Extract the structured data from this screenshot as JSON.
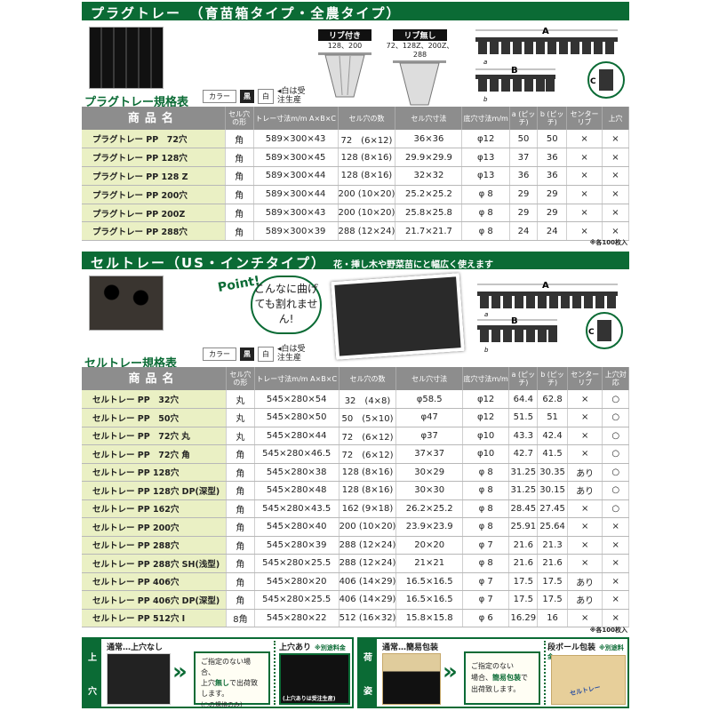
{
  "plug": {
    "title": "プラグトレー　（育苗箱タイプ・全農タイプ）",
    "spec_title": "プラグトレー規格表",
    "color_label": "カラー",
    "black": "黒",
    "white": "白",
    "white_note": "◂白は受注生産",
    "rib_with": "リブ付き",
    "rib_with_models": "128、200",
    "rib_without": "リブ無し",
    "rib_without_models": "72、128Z、200Z、288",
    "dim_a": "A",
    "dim_b": "B",
    "dim_c": "C",
    "pitch_a": "a",
    "pitch_b": "b",
    "headers": [
      "商品名",
      "セル穴の形",
      "トレー寸法m/m A×B×C",
      "セル穴の数",
      "セル穴寸法",
      "底穴寸法m/m",
      "a (ピッチ)",
      "b (ピッチ)",
      "センターリブ",
      "上穴"
    ],
    "rows": [
      [
        "プラグトレー PP　72穴",
        "角",
        "589×300×43",
        "72　(6×12)",
        "36×36",
        "φ12",
        "50",
        "50",
        "×",
        "×"
      ],
      [
        "プラグトレー PP 128穴",
        "角",
        "589×300×45",
        "128 (8×16)",
        "29.9×29.9",
        "φ13",
        "37",
        "36",
        "×",
        "×"
      ],
      [
        "プラグトレー PP 128 Z",
        "角",
        "589×300×44",
        "128 (8×16)",
        "32×32",
        "φ13",
        "36",
        "36",
        "×",
        "×"
      ],
      [
        "プラグトレー PP 200穴",
        "角",
        "589×300×44",
        "200 (10×20)",
        "25.2×25.2",
        "φ 8",
        "29",
        "29",
        "×",
        "×"
      ],
      [
        "プラグトレー PP 200Z",
        "角",
        "589×300×43",
        "200 (10×20)",
        "25.8×25.8",
        "φ 8",
        "29",
        "29",
        "×",
        "×"
      ],
      [
        "プラグトレー PP 288穴",
        "角",
        "589×300×39",
        "288 (12×24)",
        "21.7×21.7",
        "φ 8",
        "24",
        "24",
        "×",
        "×"
      ]
    ],
    "footnote": "※各100枚入"
  },
  "cell": {
    "title": "セルトレー（US・インチタイプ）",
    "subtitle": "花・挿し木や野菜苗にと幅広く使えます",
    "point": "Point!",
    "bubble": "こんなに曲げても割れません!",
    "spec_title": "セルトレー規格表",
    "color_label": "カラー",
    "black": "黒",
    "white": "白",
    "white_note": "◂白は受注生産",
    "dim_a": "A",
    "dim_b": "B",
    "dim_c": "C",
    "pitch_a": "a",
    "pitch_b": "b",
    "headers": [
      "商品名",
      "セル穴の形",
      "トレー寸法m/m A×B×C",
      "セル穴の数",
      "セル穴寸法",
      "底穴寸法m/m",
      "a (ピッチ)",
      "b (ピッチ)",
      "センターリブ",
      "上穴対応"
    ],
    "rows": [
      [
        "セルトレー PP　32穴",
        "丸",
        "545×280×54",
        "32　(4×8)",
        "φ58.5",
        "φ12",
        "64.4",
        "62.8",
        "×",
        "○"
      ],
      [
        "セルトレー PP　50穴",
        "丸",
        "545×280×50",
        "50　(5×10)",
        "φ47",
        "φ12",
        "51.5",
        "51",
        "×",
        "○"
      ],
      [
        "セルトレー PP　72穴 丸",
        "丸",
        "545×280×44",
        "72　(6×12)",
        "φ37",
        "φ10",
        "43.3",
        "42.4",
        "×",
        "○"
      ],
      [
        "セルトレー PP　72穴 角",
        "角",
        "545×280×46.5",
        "72　(6×12)",
        "37×37",
        "φ10",
        "42.7",
        "41.5",
        "×",
        "○"
      ],
      [
        "セルトレー PP 128穴",
        "角",
        "545×280×38",
        "128 (8×16)",
        "30×29",
        "φ 8",
        "31.25",
        "30.35",
        "あり",
        "○"
      ],
      [
        "セルトレー PP 128穴 DP(深型)",
        "角",
        "545×280×48",
        "128 (8×16)",
        "30×30",
        "φ 8",
        "31.25",
        "30.15",
        "あり",
        "○"
      ],
      [
        "セルトレー PP 162穴",
        "角",
        "545×280×43.5",
        "162 (9×18)",
        "26.2×25.2",
        "φ 8",
        "28.45",
        "27.45",
        "×",
        "○"
      ],
      [
        "セルトレー PP 200穴",
        "角",
        "545×280×40",
        "200 (10×20)",
        "23.9×23.9",
        "φ 8",
        "25.91",
        "25.64",
        "×",
        "×"
      ],
      [
        "セルトレー PP 288穴",
        "角",
        "545×280×39",
        "288 (12×24)",
        "20×20",
        "φ 7",
        "21.6",
        "21.3",
        "×",
        "×"
      ],
      [
        "セルトレー PP 288穴 SH(浅型)",
        "角",
        "545×280×25.5",
        "288 (12×24)",
        "21×21",
        "φ 8",
        "21.6",
        "21.6",
        "×",
        "×"
      ],
      [
        "セルトレー PP 406穴",
        "角",
        "545×280×20",
        "406 (14×29)",
        "16.5×16.5",
        "φ 7",
        "17.5",
        "17.5",
        "あり",
        "×"
      ],
      [
        "セルトレー PP 406穴 DP(深型)",
        "角",
        "545×280×25.5",
        "406 (14×29)",
        "16.5×16.5",
        "φ 7",
        "17.5",
        "17.5",
        "あり",
        "×"
      ],
      [
        "セルトレー PP 512穴 Ⅰ",
        "8角",
        "545×280×22",
        "512 (16×32)",
        "15.8×15.8",
        "φ 6",
        "16.29",
        "16",
        "×",
        "×"
      ]
    ],
    "footnote": "※各100枚入"
  },
  "holes": {
    "strip": [
      "上",
      "穴"
    ],
    "normal": "通常…上穴なし",
    "msg1": "ご指定のない場合、",
    "msg2a": "上穴",
    "msg2b": "無し",
    "msg2c": "で出荷致します。",
    "msg3": "(○の規格のみ)",
    "with": "上穴あり",
    "with_note": "※別途料金",
    "with_caption": "(上穴ありは受注生産)"
  },
  "packing": {
    "strip": [
      "荷",
      "姿"
    ],
    "normal": "通常…簡易包装",
    "msg1": "ご指定のない",
    "msg2a": "場合、",
    "msg2b": "簡易包装",
    "msg2c": "で",
    "msg3": "出荷致します。",
    "box": "段ボール包装",
    "box_note": "※別途料金",
    "box_label": "セルトレー"
  },
  "colors": {
    "green": "#0b6b35",
    "header_gray": "#8d8d8d",
    "name_bg": "#eaf0c4"
  }
}
